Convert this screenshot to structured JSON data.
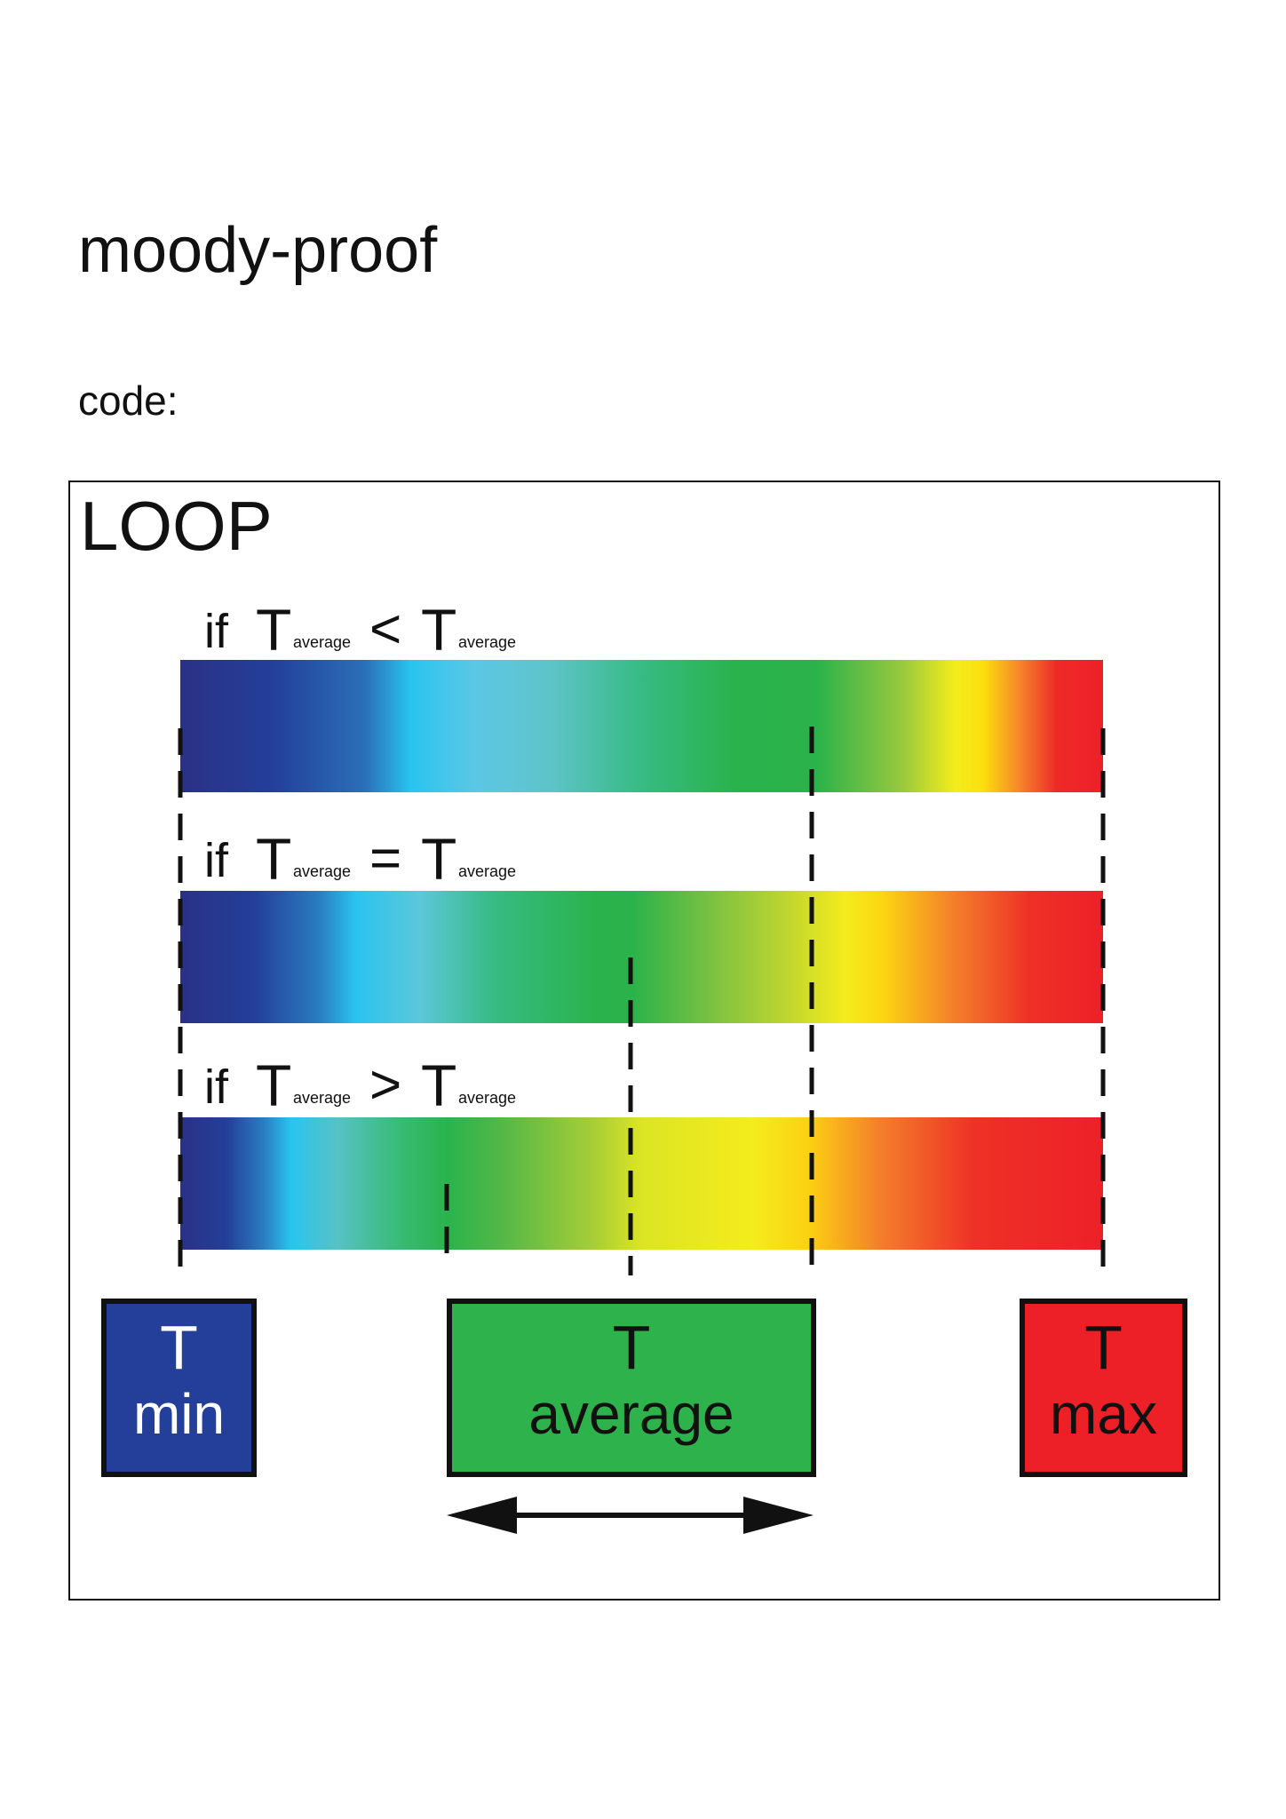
{
  "title": "moody-proof",
  "code_label": "code:",
  "loop_label": "LOOP",
  "conditions": [
    {
      "keyword": "if",
      "left": "T",
      "left_sub": "average",
      "operator": "<",
      "right": "T",
      "right_sub": "average"
    },
    {
      "keyword": "if",
      "left": "T",
      "left_sub": "average",
      "operator": "=",
      "right": "T",
      "right_sub": "average"
    },
    {
      "keyword": "if",
      "left": "T",
      "left_sub": "average",
      "operator": ">",
      "right": "T",
      "right_sub": "average"
    }
  ],
  "boxes": {
    "min": {
      "line1": "T",
      "line2": "min",
      "color": "#233f99"
    },
    "average": {
      "line1": "T",
      "line2": "average",
      "color": "#2eb24b"
    },
    "max": {
      "line1": "T",
      "line2": "max",
      "color": "#ed2028"
    }
  },
  "gradients": [
    {
      "name": "bar-less",
      "stops": [
        {
          "offset": 0.0,
          "color": "#2a3186"
        },
        {
          "offset": 0.1,
          "color": "#233f99"
        },
        {
          "offset": 0.2,
          "color": "#2a6fb8"
        },
        {
          "offset": 0.25,
          "color": "#29c4ef"
        },
        {
          "offset": 0.32,
          "color": "#5cc7e5"
        },
        {
          "offset": 0.4,
          "color": "#5ec4c9"
        },
        {
          "offset": 0.5,
          "color": "#37bb83"
        },
        {
          "offset": 0.6,
          "color": "#2ab34c"
        },
        {
          "offset": 0.69,
          "color": "#2bb24a"
        },
        {
          "offset": 0.78,
          "color": "#96c83e"
        },
        {
          "offset": 0.84,
          "color": "#f4ec1c"
        },
        {
          "offset": 0.87,
          "color": "#fcdf0e"
        },
        {
          "offset": 0.91,
          "color": "#f5842a"
        },
        {
          "offset": 0.95,
          "color": "#ee2a27"
        },
        {
          "offset": 1.0,
          "color": "#ed2028"
        }
      ]
    },
    {
      "name": "bar-equal",
      "stops": [
        {
          "offset": 0.0,
          "color": "#2a3186"
        },
        {
          "offset": 0.08,
          "color": "#233f99"
        },
        {
          "offset": 0.15,
          "color": "#2a7cc0"
        },
        {
          "offset": 0.19,
          "color": "#29c4ef"
        },
        {
          "offset": 0.26,
          "color": "#5cc7da"
        },
        {
          "offset": 0.34,
          "color": "#37bb83"
        },
        {
          "offset": 0.45,
          "color": "#2ab34c"
        },
        {
          "offset": 0.49,
          "color": "#2bb24a"
        },
        {
          "offset": 0.58,
          "color": "#7fc241"
        },
        {
          "offset": 0.66,
          "color": "#c2d62f"
        },
        {
          "offset": 0.72,
          "color": "#f4ec1c"
        },
        {
          "offset": 0.76,
          "color": "#fcd711"
        },
        {
          "offset": 0.84,
          "color": "#f47d2b"
        },
        {
          "offset": 0.92,
          "color": "#ee3126"
        },
        {
          "offset": 1.0,
          "color": "#ed2028"
        }
      ]
    },
    {
      "name": "bar-greater",
      "stops": [
        {
          "offset": 0.0,
          "color": "#2a3186"
        },
        {
          "offset": 0.05,
          "color": "#233f99"
        },
        {
          "offset": 0.09,
          "color": "#2a7cc0"
        },
        {
          "offset": 0.12,
          "color": "#29c4ef"
        },
        {
          "offset": 0.17,
          "color": "#56c2c6"
        },
        {
          "offset": 0.24,
          "color": "#37bb72"
        },
        {
          "offset": 0.29,
          "color": "#2ab34c"
        },
        {
          "offset": 0.35,
          "color": "#55b846"
        },
        {
          "offset": 0.45,
          "color": "#a9ce36"
        },
        {
          "offset": 0.5,
          "color": "#dce524"
        },
        {
          "offset": 0.62,
          "color": "#f4ec1c"
        },
        {
          "offset": 0.68,
          "color": "#fcd112"
        },
        {
          "offset": 0.76,
          "color": "#f47d2b"
        },
        {
          "offset": 0.86,
          "color": "#ee3126"
        },
        {
          "offset": 1.0,
          "color": "#ed2028"
        }
      ]
    }
  ]
}
